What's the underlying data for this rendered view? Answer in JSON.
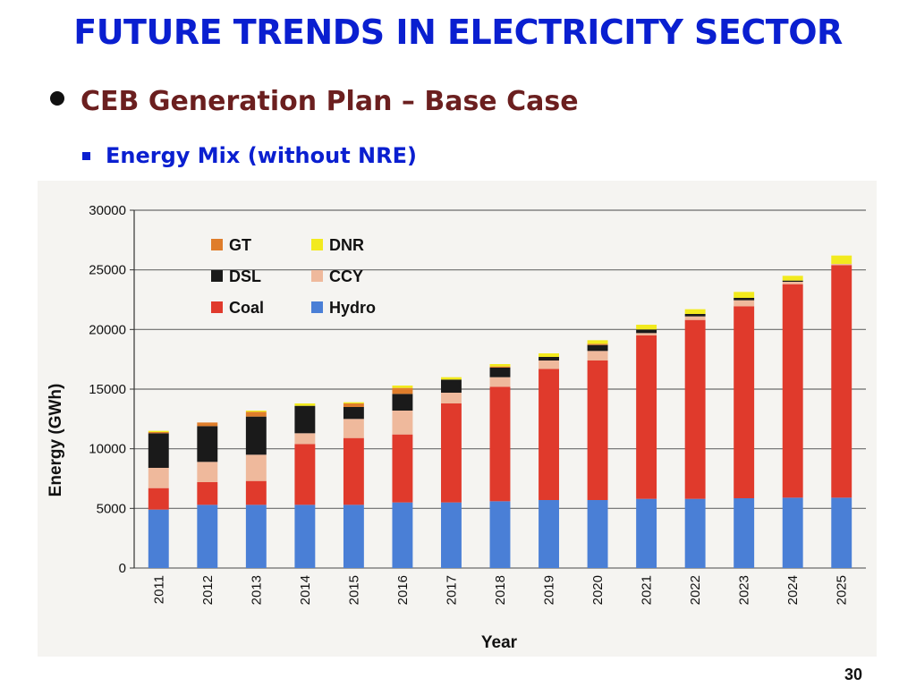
{
  "slide": {
    "title": "FUTURE TRENDS IN ELECTRICITY SECTOR",
    "bullet": "CEB Generation Plan – Base Case",
    "subbullet": "Energy Mix (without NRE)",
    "page_number": "30"
  },
  "colors": {
    "title": "#0a1fd0",
    "bullet": "#6b1f1f",
    "Hydro": "#4a7fd6",
    "Coal": "#e03a2c",
    "CCY": "#efb99c",
    "DSL": "#1a1a1a",
    "GT": "#df7d2b",
    "DNR": "#f2ea1e"
  },
  "chart_data": {
    "type": "bar",
    "stacked": true,
    "xlabel": "Year",
    "ylabel": "Energy (GWh)",
    "ylim": [
      0,
      30000
    ],
    "yticks": [
      0,
      5000,
      10000,
      15000,
      20000,
      25000,
      30000
    ],
    "grid": "horizontal",
    "legend_position": "top-left",
    "legend_order": [
      "GT",
      "DNR",
      "DSL",
      "CCY",
      "Coal",
      "Hydro"
    ],
    "categories": [
      "2011",
      "2012",
      "2013",
      "2014",
      "2015",
      "2016",
      "2017",
      "2018",
      "2019",
      "2020",
      "2021",
      "2022",
      "2023",
      "2024",
      "2025"
    ],
    "series": [
      {
        "name": "Hydro",
        "values": [
          4900,
          5300,
          5300,
          5300,
          5300,
          5500,
          5500,
          5600,
          5700,
          5700,
          5800,
          5800,
          5850,
          5900,
          5900
        ]
      },
      {
        "name": "Coal",
        "values": [
          1800,
          1900,
          2000,
          5100,
          5600,
          5700,
          8300,
          9600,
          11000,
          11700,
          13700,
          15000,
          16100,
          17900,
          19500
        ]
      },
      {
        "name": "CCY",
        "values": [
          1700,
          1700,
          2200,
          900,
          1600,
          2000,
          900,
          800,
          700,
          800,
          200,
          300,
          500,
          200,
          100
        ]
      },
      {
        "name": "DSL",
        "values": [
          2900,
          3000,
          3200,
          2300,
          1000,
          1400,
          1100,
          800,
          300,
          500,
          300,
          200,
          200,
          100,
          0
        ]
      },
      {
        "name": "GT",
        "values": [
          100,
          300,
          400,
          0,
          300,
          500,
          0,
          100,
          0,
          100,
          0,
          0,
          0,
          0,
          0
        ]
      },
      {
        "name": "DNR",
        "values": [
          100,
          0,
          100,
          200,
          100,
          200,
          200,
          200,
          300,
          300,
          400,
          400,
          500,
          400,
          700
        ]
      }
    ]
  }
}
